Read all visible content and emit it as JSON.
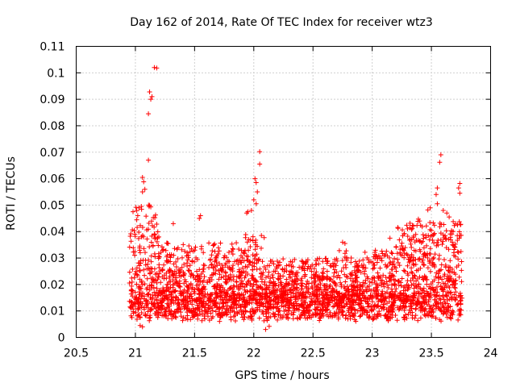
{
  "chart_data": {
    "type": "scatter",
    "title": "Day 162 of 2014, Rate Of TEC Index for receiver wtz3",
    "xlabel": "GPS time / hours",
    "ylabel": "ROTI / TECUs",
    "xlim": [
      20.5,
      24
    ],
    "ylim": [
      0,
      0.11
    ],
    "grid": true,
    "marker": "+",
    "series_color": "#ff0000",
    "x_ticks": [
      "20.5",
      "21",
      "21.5",
      "22",
      "22.5",
      "23",
      "23.5",
      "24"
    ],
    "y_ticks": [
      "0",
      "0.01",
      "0.02",
      "0.03",
      "0.04",
      "0.05",
      "0.06",
      "0.07",
      "0.08",
      "0.09",
      "0.1",
      "0.11"
    ],
    "series": [
      {
        "name": "wtz3",
        "data_range": [
          20.95,
          23.76
        ],
        "base_level": 0.012,
        "outliers": [
          [
            21.16,
            0.102
          ],
          [
            21.18,
            0.1018
          ],
          [
            21.12,
            0.0928
          ],
          [
            21.14,
            0.091
          ],
          [
            21.13,
            0.09
          ],
          [
            21.11,
            0.0845
          ],
          [
            21.11,
            0.067
          ],
          [
            21.06,
            0.0605
          ],
          [
            21.07,
            0.0588
          ],
          [
            21.06,
            0.055
          ],
          [
            21.08,
            0.056
          ],
          [
            21.03,
            0.049
          ],
          [
            21.05,
            0.0495
          ],
          [
            21.02,
            0.046
          ],
          [
            20.98,
            0.0475
          ],
          [
            22.05,
            0.0702
          ],
          [
            22.05,
            0.0655
          ],
          [
            22.01,
            0.06
          ],
          [
            22.02,
            0.0585
          ],
          [
            22.0,
            0.052
          ],
          [
            22.02,
            0.0505
          ],
          [
            21.98,
            0.048
          ],
          [
            21.95,
            0.0475
          ],
          [
            21.94,
            0.047
          ],
          [
            22.03,
            0.055
          ],
          [
            23.58,
            0.069
          ],
          [
            23.57,
            0.0662
          ],
          [
            23.55,
            0.0565
          ],
          [
            23.54,
            0.054
          ],
          [
            23.55,
            0.0505
          ],
          [
            23.74,
            0.0582
          ],
          [
            23.73,
            0.0565
          ],
          [
            23.74,
            0.0545
          ],
          [
            23.49,
            0.049
          ],
          [
            23.47,
            0.0482
          ],
          [
            23.6,
            0.048
          ],
          [
            23.63,
            0.047
          ],
          [
            23.65,
            0.0455
          ],
          [
            21.32,
            0.043
          ],
          [
            21.55,
            0.046
          ],
          [
            21.54,
            0.045
          ],
          [
            22.75,
            0.036
          ],
          [
            22.77,
            0.0355
          ],
          [
            23.39,
            0.0447
          ],
          [
            23.4,
            0.044
          ],
          [
            23.15,
            0.0375
          ],
          [
            22.1,
            0.003
          ],
          [
            22.13,
            0.0042
          ],
          [
            21.04,
            0.0045
          ],
          [
            21.06,
            0.004
          ]
        ],
        "dense_band": {
          "segments": [
            [
              20.95,
              21.2,
              0.004,
              0.05
            ],
            [
              21.2,
              21.9,
              0.005,
              0.036
            ],
            [
              21.9,
              22.1,
              0.003,
              0.04
            ],
            [
              22.1,
              22.7,
              0.005,
              0.03
            ],
            [
              22.7,
              23.2,
              0.005,
              0.033
            ],
            [
              23.2,
              23.76,
              0.005,
              0.044
            ]
          ],
          "points_per_hour": 1050
        }
      }
    ]
  }
}
